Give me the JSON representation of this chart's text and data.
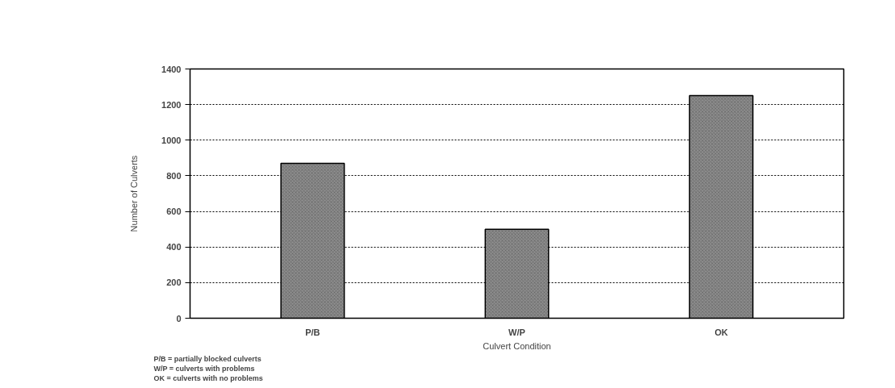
{
  "chart_data": {
    "type": "bar",
    "xlabel": "Culvert Condition",
    "ylabel": "Number of Culverts",
    "categories": [
      "P/B",
      "W/P",
      "OK"
    ],
    "values": [
      870,
      500,
      1250
    ],
    "color": "#8c8c8c",
    "ylim": [
      0,
      1400
    ],
    "yticks": [
      0,
      200,
      400,
      600,
      800,
      1000,
      1200,
      1400
    ],
    "grid": "y",
    "annotations": [
      "P/B = partially blocked culverts",
      "W/P = culverts with problems",
      "OK  = culverts with no problems"
    ]
  }
}
